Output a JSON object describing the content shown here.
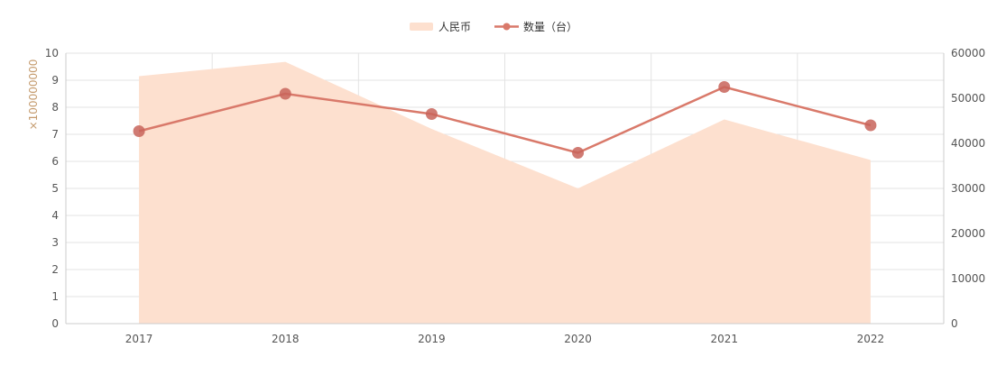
{
  "chart_data": {
    "type": "line",
    "categories": [
      "2017",
      "2018",
      "2019",
      "2020",
      "2021",
      "2022"
    ],
    "series": [
      {
        "name": "人民币",
        "kind": "area",
        "axis": "left",
        "color": "#fde0cf",
        "values": [
          9.15,
          9.68,
          7.2,
          5.0,
          7.55,
          6.05
        ]
      },
      {
        "name": "数量（台）",
        "kind": "line",
        "axis": "right",
        "color": "#d9796a",
        "values": [
          42700,
          51000,
          46500,
          37900,
          52500,
          44000
        ]
      }
    ],
    "y_left": {
      "unit": "×100000000",
      "min": 0,
      "max": 10,
      "ticks": [
        "0",
        "1",
        "2",
        "3",
        "4",
        "5",
        "6",
        "7",
        "8",
        "9",
        "10"
      ]
    },
    "y_right": {
      "min": 0,
      "max": 60000,
      "ticks": [
        "0",
        "10000",
        "20000",
        "30000",
        "40000",
        "50000",
        "60000"
      ]
    },
    "grid": true,
    "legend_position": "top-center"
  }
}
